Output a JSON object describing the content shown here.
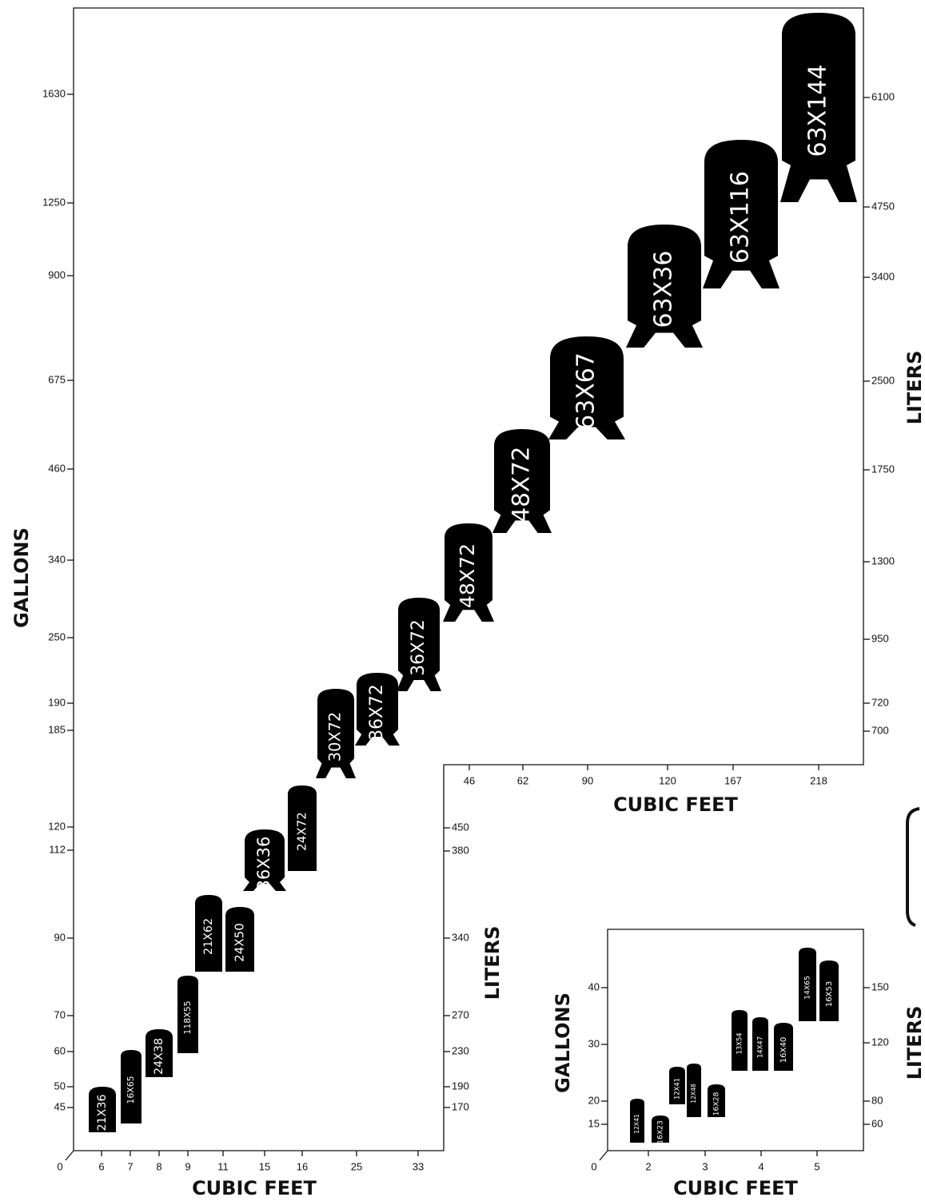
{
  "main": {
    "y_label": "GALLONS",
    "y2_label": "LITERS",
    "x_label": "CUBIC FEET",
    "gallon_ticks": [
      "1630",
      "1250",
      "900",
      "675",
      "460",
      "340",
      "250",
      "190",
      "185",
      "120",
      "112",
      "90",
      "70",
      "60",
      "50",
      "45"
    ],
    "liter_ticks_upper": [
      "6100",
      "4750",
      "3400",
      "2500",
      "1750",
      "1300",
      "950",
      "720",
      "700"
    ],
    "liter_ticks_lower": [
      "450",
      "380",
      "340",
      "270",
      "230",
      "190",
      "170"
    ],
    "x_ticks_lower": [
      "0",
      "6",
      "7",
      "8",
      "9",
      "11",
      "15",
      "16",
      "25",
      "33"
    ],
    "x_ticks_upper": [
      "46",
      "62",
      "90",
      "120",
      "167",
      "218"
    ],
    "upper_x_label": "CUBIC FEET",
    "upper_y2_label": "LITERS",
    "tanks": [
      "21X36",
      "16X65",
      "24X38",
      "118X55",
      "21X62",
      "24X50",
      "36X36",
      "24X72",
      "30X72",
      "36X72",
      "36X72",
      "48X72",
      "48X72",
      "63X67",
      "63X36",
      "63X116",
      "63X144"
    ]
  },
  "inset": {
    "y_label": "GALLONS",
    "y2_label": "LITERS",
    "x_label": "CUBIC FEET",
    "gallon_ticks": [
      "40",
      "30",
      "20",
      "15"
    ],
    "liter_ticks": [
      "150",
      "120",
      "80",
      "60"
    ],
    "x_ticks": [
      "0",
      "2",
      "3",
      "4",
      "5"
    ],
    "tanks": [
      "12X41",
      "16X23",
      "12X41",
      "12X48",
      "16X28",
      "13X54",
      "14X47",
      "16X40",
      "14X65",
      "16X53"
    ]
  }
}
